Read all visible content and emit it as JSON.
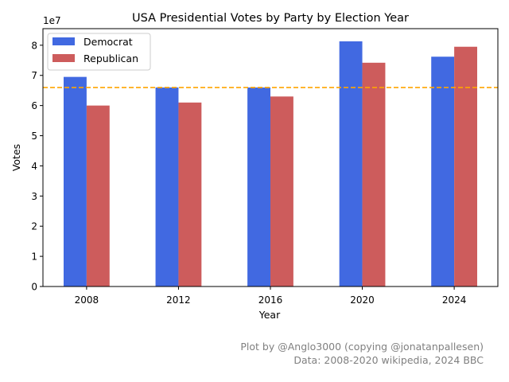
{
  "chart_data": {
    "type": "bar",
    "title": "USA Presidential Votes by Party by Election Year",
    "xlabel": "Year",
    "ylabel": "Votes",
    "y_offset_label": "1e7",
    "categories": [
      "2008",
      "2012",
      "2016",
      "2020",
      "2024"
    ],
    "series": [
      {
        "name": "Democrat",
        "color": "#4169E1",
        "values": [
          69500000,
          66000000,
          66000000,
          81300000,
          76200000
        ]
      },
      {
        "name": "Republican",
        "color": "#CD5C5C",
        "values": [
          60000000,
          61000000,
          63000000,
          74200000,
          79500000
        ]
      }
    ],
    "reference_line": {
      "value": 66000000,
      "style": "dashed",
      "color": "#FFA500"
    },
    "ylim": [
      0,
      85500000
    ],
    "y_ticks": [
      0,
      10000000,
      20000000,
      30000000,
      40000000,
      50000000,
      60000000,
      70000000,
      80000000
    ],
    "y_tick_labels": [
      "0",
      "1",
      "2",
      "3",
      "4",
      "5",
      "6",
      "7",
      "8"
    ],
    "legend_position": "top-left",
    "grid": false
  },
  "credits": {
    "line1": "Plot by @Anglo3000 (copying @jonatanpallesen)",
    "line2": "Data: 2008-2020 wikipedia, 2024 BBC"
  }
}
